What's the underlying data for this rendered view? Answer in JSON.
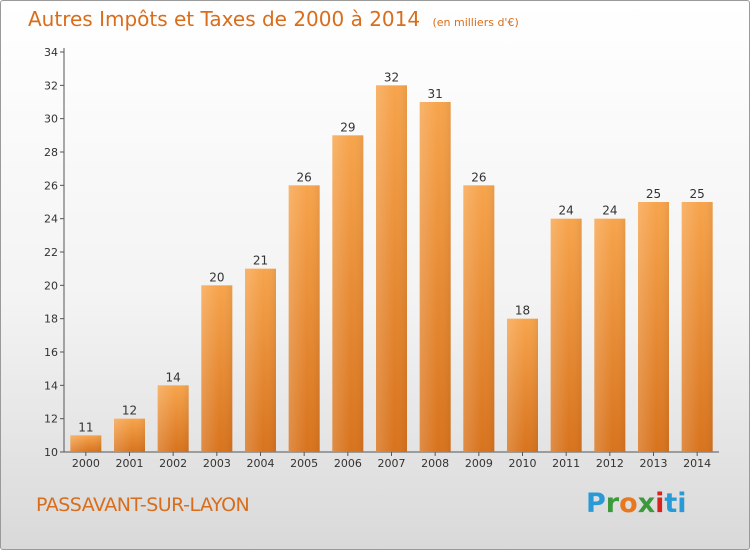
{
  "chart_data": {
    "type": "bar",
    "title": "Autres Impôts et Taxes de 2000 à 2014",
    "subtitle": "(en milliers d'€)",
    "categories": [
      "2000",
      "2001",
      "2002",
      "2003",
      "2004",
      "2005",
      "2006",
      "2007",
      "2008",
      "2009",
      "2010",
      "2011",
      "2012",
      "2013",
      "2014"
    ],
    "values": [
      11,
      12,
      14,
      20,
      21,
      26,
      29,
      32,
      31,
      26,
      18,
      24,
      24,
      25,
      25
    ],
    "ylim": [
      10,
      34
    ],
    "yticks": [
      10,
      12,
      14,
      16,
      18,
      20,
      22,
      24,
      26,
      28,
      30,
      32,
      34
    ],
    "grid": false,
    "bar_color_top": "#f7a44c",
    "bar_color_bottom": "#d8731d"
  },
  "footer": {
    "commune": "PASSAVANT-SUR-LAYON",
    "logo": [
      "P",
      "r",
      "o",
      "x",
      "i",
      "t",
      "i"
    ]
  },
  "colors": {
    "accent": "#d96d1b"
  }
}
